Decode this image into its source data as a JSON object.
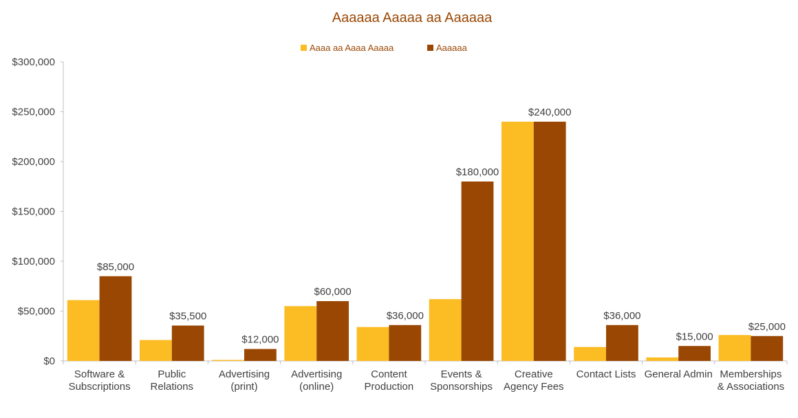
{
  "colors": {
    "series1": "#FBBC24",
    "series2": "#9A4704",
    "title": "#9A4704",
    "legend_text": "#9A4704",
    "axis_text": "#404040",
    "axis_line": "#BFBFBF"
  },
  "chart_data": {
    "type": "bar",
    "title": "Aaaaaa Aaaaa aa Aaaaaa",
    "legend_position": "top",
    "grid": false,
    "ylim": [
      0,
      300000
    ],
    "y_ticks": [
      0,
      50000,
      100000,
      150000,
      200000,
      250000,
      300000
    ],
    "y_tick_labels": [
      "$0",
      "$50,000",
      "$100,000",
      "$150,000",
      "$200,000",
      "$250,000",
      "$300,000"
    ],
    "categories": [
      [
        "Software &",
        "Subscriptions"
      ],
      [
        "Public",
        "Relations"
      ],
      [
        "Advertising",
        "(print)"
      ],
      [
        "Advertising",
        "(online)"
      ],
      [
        "Content",
        "Production"
      ],
      [
        "Events &",
        "Sponsorships"
      ],
      [
        "Creative",
        "Agency Fees"
      ],
      [
        "Contact Lists"
      ],
      [
        "General Admin"
      ],
      [
        "Memberships",
        "& Associations"
      ]
    ],
    "series": [
      {
        "name": "Aaaa aa Aaaa Aaaaa",
        "values": [
          61000,
          21000,
          1000,
          55000,
          34000,
          62000,
          240000,
          14000,
          3500,
          26000
        ],
        "labels": []
      },
      {
        "name": "Aaaaaa",
        "values": [
          85000,
          35500,
          12000,
          60000,
          36000,
          180000,
          240000,
          36000,
          15000,
          25000
        ],
        "labels": [
          "$85,000",
          "$35,500",
          "$12,000",
          "$60,000",
          "$36,000",
          "$180,000",
          "$240,000",
          "$36,000",
          "$15,000",
          "$25,000"
        ]
      }
    ]
  }
}
